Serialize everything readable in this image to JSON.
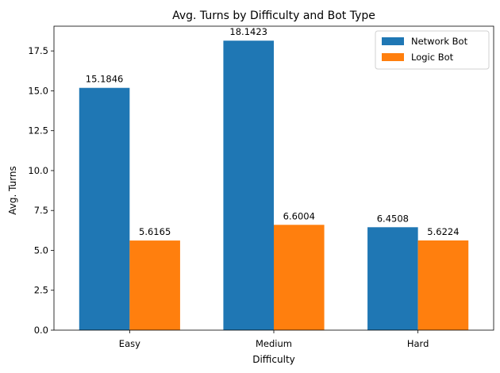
{
  "chart_data": {
    "type": "bar",
    "title": "Avg. Turns by Difficulty and Bot Type",
    "xlabel": "Difficulty",
    "ylabel": "Avg. Turns",
    "categories": [
      "Easy",
      "Medium",
      "Hard"
    ],
    "series": [
      {
        "name": "Network Bot",
        "color": "#1f77b4",
        "values": [
          15.1846,
          18.1423,
          6.4508
        ],
        "labels": [
          "15.1846",
          "18.1423",
          "6.4508"
        ]
      },
      {
        "name": "Logic Bot",
        "color": "#ff7f0e",
        "values": [
          5.6165,
          6.6004,
          5.6224
        ],
        "labels": [
          "5.6165",
          "6.6004",
          "5.6224"
        ]
      }
    ],
    "ylim": [
      0,
      19.05
    ],
    "yticks": [
      0.0,
      2.5,
      5.0,
      7.5,
      10.0,
      12.5,
      15.0,
      17.5
    ],
    "ytick_labels": [
      "0.0",
      "2.5",
      "5.0",
      "7.5",
      "10.0",
      "12.5",
      "15.0",
      "17.5"
    ],
    "grid": false,
    "legend_position": "top-right"
  }
}
